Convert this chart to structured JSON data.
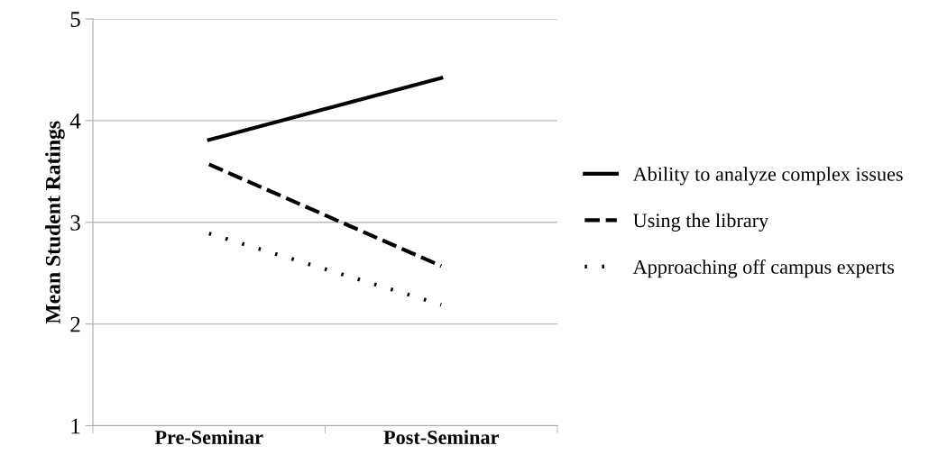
{
  "chart_data": {
    "type": "line",
    "ylabel": "Mean Student Ratings",
    "categories": [
      "Pre-Seminar",
      "Post-Seminar"
    ],
    "series": [
      {
        "name": "Ability to analyze complex issues",
        "color": "#000000",
        "values": [
          3.81,
          4.42
        ],
        "line_style": "solid"
      },
      {
        "name": "Using the library",
        "color": "#000000",
        "values": [
          3.57,
          2.57
        ],
        "line_style": "dashed"
      },
      {
        "name": "Approaching off campus experts",
        "color": "#000000",
        "values": [
          2.89,
          2.19
        ],
        "line_style": "dotted"
      }
    ],
    "ylim": [
      1,
      5
    ],
    "yticks": [
      1,
      2,
      3,
      4,
      5
    ],
    "grid": "y",
    "legend": "right",
    "marker": "none"
  }
}
